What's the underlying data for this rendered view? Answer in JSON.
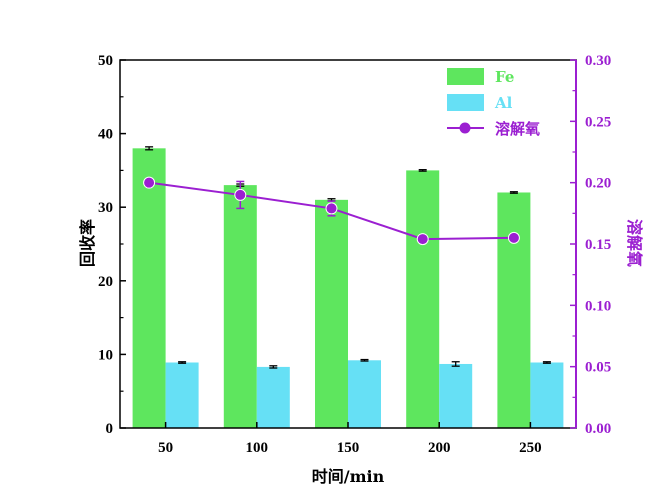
{
  "chart_data": {
    "type": "bar+line",
    "categories": [
      "50",
      "100",
      "150",
      "200",
      "250"
    ],
    "xlabel": "时间/min",
    "ylabel": "回收率",
    "y2label": "溶解氧",
    "ylim": [
      0,
      50
    ],
    "y2lim": [
      0,
      0.3
    ],
    "y_ticks": [
      "0",
      "10",
      "20",
      "30",
      "40",
      "50"
    ],
    "y2_ticks": [
      "0.00",
      "0.05",
      "0.10",
      "0.15",
      "0.20",
      "0.25",
      "0.30"
    ],
    "series": [
      {
        "name": "Fe",
        "kind": "bar",
        "axis": "left",
        "color": "#5ee65e",
        "values": [
          38.0,
          33.0,
          31.0,
          35.0,
          32.0
        ],
        "errors": [
          0.2,
          0.15,
          0.15,
          0.1,
          0.1
        ]
      },
      {
        "name": "Al",
        "kind": "bar",
        "axis": "left",
        "color": "#66e0f5",
        "values": [
          8.9,
          8.3,
          9.2,
          8.7,
          8.9
        ],
        "errors": [
          0.1,
          0.15,
          0.1,
          0.3,
          0.1
        ]
      },
      {
        "name": "溶解氧",
        "kind": "line",
        "axis": "right",
        "color": "#9b1fd1",
        "values": [
          0.2,
          0.19,
          0.179,
          0.154,
          0.155
        ],
        "errors": [
          0.0,
          0.011,
          0.006,
          0.0,
          0.0
        ]
      }
    ],
    "legend_position": "top-right",
    "grid": false,
    "colors": {
      "left_axis": "#000000",
      "right_axis": "#9b1fd1"
    }
  }
}
